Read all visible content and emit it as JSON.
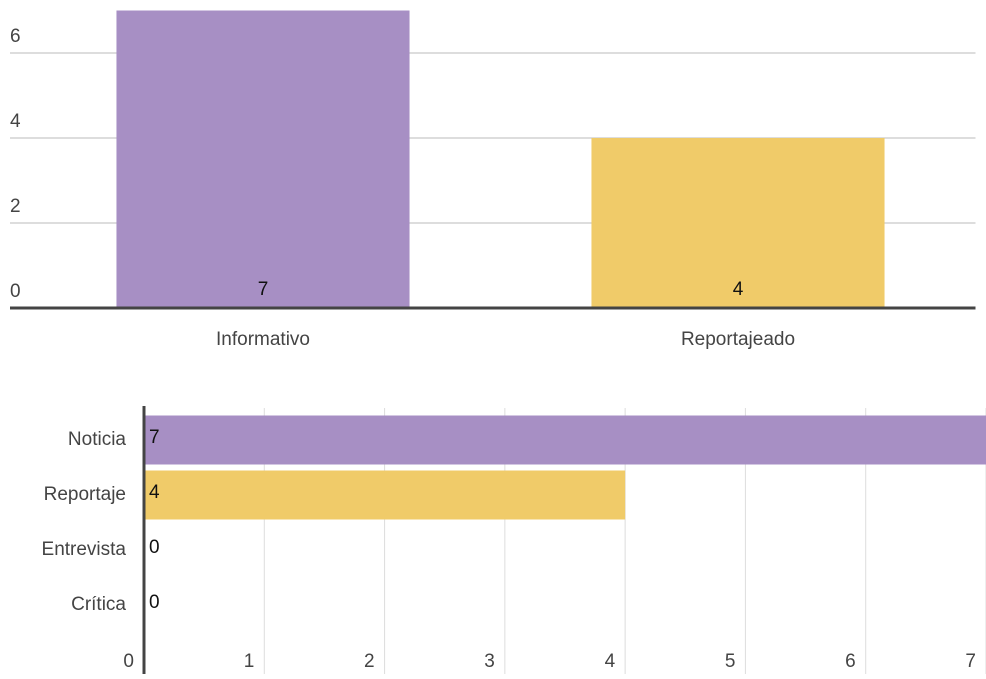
{
  "chart_data": [
    {
      "type": "bar",
      "categories": [
        "Informativo",
        "Reportajeado"
      ],
      "values": [
        7,
        4
      ],
      "colors": [
        "#a78fc4",
        "#f0cb69"
      ],
      "ylim": [
        0,
        7
      ],
      "yticks": [
        0,
        2,
        4,
        6
      ],
      "grid": true
    },
    {
      "type": "barh",
      "categories": [
        "Noticia",
        "Reportaje",
        "Entrevista",
        "Crítica"
      ],
      "values": [
        7,
        4,
        0,
        0
      ],
      "colors": [
        "#a78fc4",
        "#f0cb69",
        "#a78fc4",
        "#a78fc4"
      ],
      "xlim": [
        0,
        7
      ],
      "xticks": [
        0,
        1,
        2,
        3,
        4,
        5,
        6,
        7
      ],
      "grid": true
    }
  ]
}
